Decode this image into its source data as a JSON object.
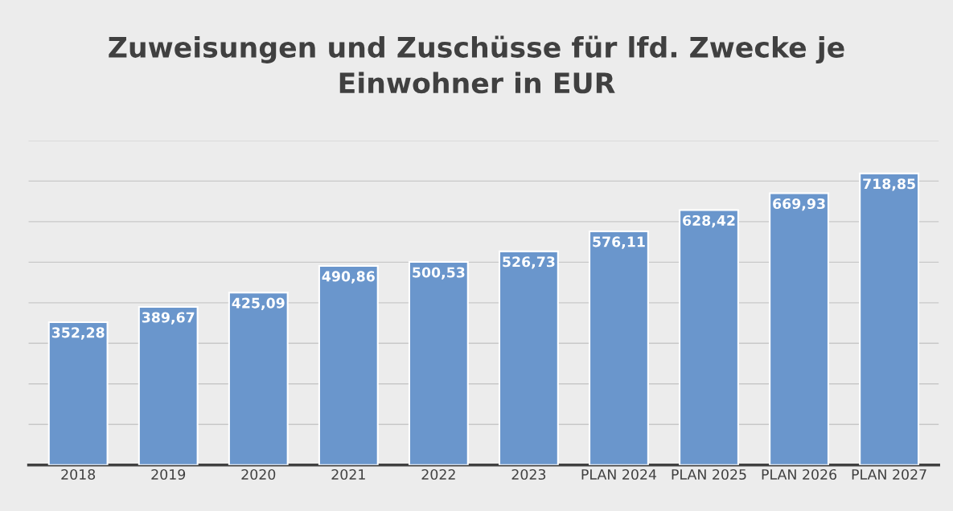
{
  "chart_data": {
    "type": "bar",
    "title": "Zuweisungen und Zuschüsse für lfd. Zwecke je\nEinwohner in EUR",
    "categories": [
      "2018",
      "2019",
      "2020",
      "2021",
      "2022",
      "2023",
      "PLAN 2024",
      "PLAN 2025",
      "PLAN 2026",
      "PLAN 2027"
    ],
    "values": [
      352.28,
      389.67,
      425.09,
      490.86,
      500.53,
      526.73,
      576.11,
      628.42,
      669.93,
      718.85
    ],
    "value_labels": [
      "352,28",
      "389,67",
      "425,09",
      "490,86",
      "500,53",
      "526,73",
      "576,11",
      "628,42",
      "669,93",
      "718,85"
    ],
    "color": "#6a96cc",
    "ylim": [
      0,
      800
    ],
    "yticks": [
      {
        "value": 0,
        "label": null
      },
      {
        "value": 100,
        "label": null
      },
      {
        "value": 200,
        "label": null
      },
      {
        "value": 300,
        "label": null
      },
      {
        "value": 400,
        "label": null
      },
      {
        "value": 500,
        "label": null
      },
      {
        "value": 600,
        "label": null
      },
      {
        "value": 700,
        "label": null
      },
      {
        "value": 800,
        "label": null
      }
    ],
    "tick_labels": "x",
    "grid": "y",
    "legend": false
  }
}
